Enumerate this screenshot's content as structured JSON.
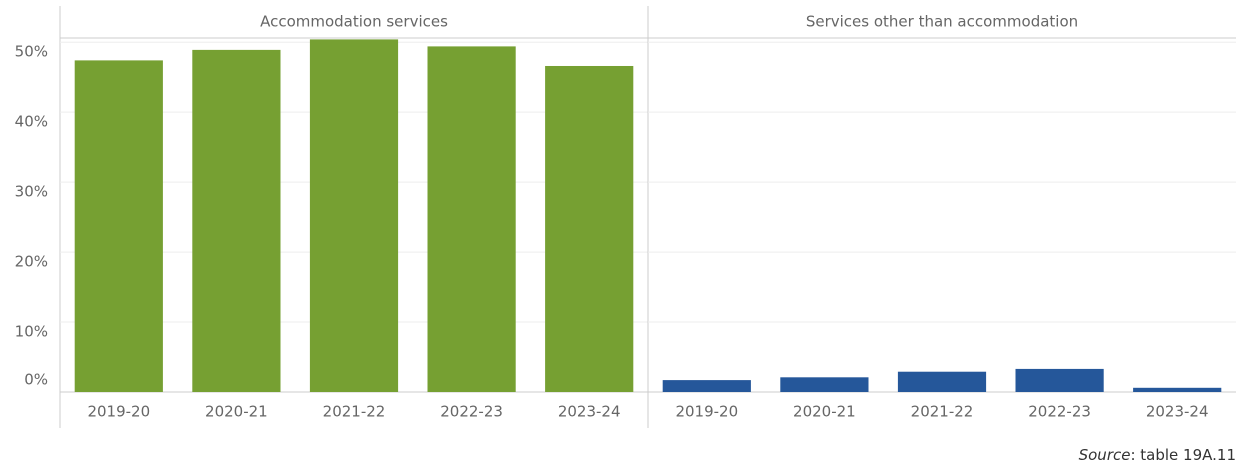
{
  "chart_data": [
    {
      "type": "bar",
      "title": "Accommodation services",
      "categories": [
        "2019-20",
        "2020-21",
        "2021-22",
        "2022-23",
        "2023-24"
      ],
      "values": [
        47.4,
        48.9,
        50.4,
        49.4,
        46.6
      ],
      "color": "#76a032",
      "ylim": [
        0,
        50.6
      ],
      "yticks": [
        {
          "value": 0,
          "label": "0%"
        },
        {
          "value": 10,
          "label": "10%"
        },
        {
          "value": 20,
          "label": "20%"
        },
        {
          "value": 30,
          "label": "30%"
        },
        {
          "value": 40,
          "label": "40%"
        },
        {
          "value": 50,
          "label": "50%"
        }
      ],
      "grid": true
    },
    {
      "type": "bar",
      "title": "Services other than accommodation",
      "categories": [
        "2019-20",
        "2020-21",
        "2021-22",
        "2022-23",
        "2023-24"
      ],
      "values": [
        1.7,
        2.1,
        2.9,
        3.3,
        0.6
      ],
      "color": "#25579a",
      "ylim": [
        0,
        50.6
      ],
      "yticks": [
        {
          "value": 0,
          "label": "0%"
        },
        {
          "value": 10,
          "label": "10%"
        },
        {
          "value": 20,
          "label": "20%"
        },
        {
          "value": 30,
          "label": "30%"
        },
        {
          "value": 40,
          "label": "40%"
        },
        {
          "value": 50,
          "label": "50%"
        }
      ],
      "grid": true
    }
  ],
  "source": {
    "label": "Source",
    "text": ": table 19A.11"
  }
}
